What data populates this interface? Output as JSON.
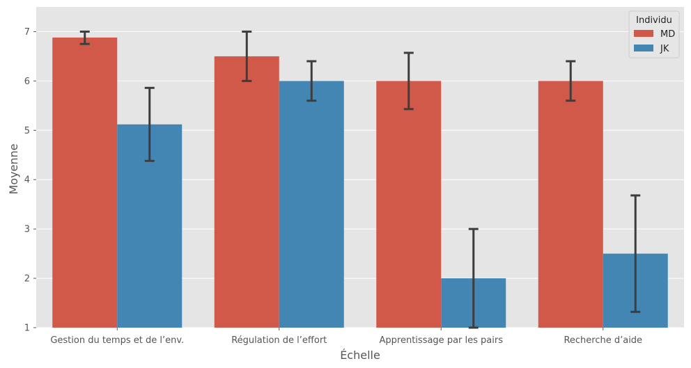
{
  "chart_data": {
    "type": "bar",
    "categories": [
      "Gestion du temps et de l’env.",
      "Régulation de l’effort",
      "Apprentissage par les pairs",
      "Recherche d’aide"
    ],
    "series": [
      {
        "name": "MD",
        "color": "#d1594a",
        "values": [
          6.88,
          6.5,
          6.0,
          6.0
        ],
        "err_low": [
          6.75,
          6.0,
          5.43,
          5.6
        ],
        "err_high": [
          7.0,
          7.0,
          6.57,
          6.4
        ]
      },
      {
        "name": "JK",
        "color": "#4386b4",
        "values": [
          5.12,
          6.0,
          2.0,
          2.5
        ],
        "err_low": [
          4.38,
          5.6,
          1.0,
          1.32
        ],
        "err_high": [
          5.86,
          6.4,
          3.0,
          3.68
        ]
      }
    ],
    "xlabel": "Échelle",
    "ylabel": "Moyenne",
    "ylim": [
      1,
      7.5
    ],
    "yticks": [
      1,
      2,
      3,
      4,
      5,
      6,
      7
    ],
    "legend": {
      "title": "Individu",
      "position": "top-right"
    },
    "grid": true,
    "background": "#e5e5e5",
    "errorbar_color": "#3d3d3d"
  }
}
